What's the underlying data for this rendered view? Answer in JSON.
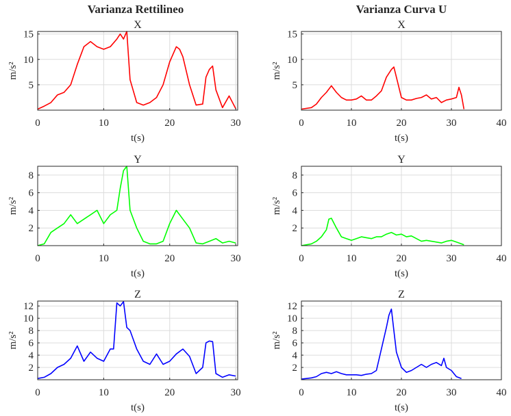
{
  "figure": {
    "column_titles": [
      "Varianza Rettilineo",
      "Varianza Curva U"
    ]
  },
  "colors": {
    "X": "#ff0000",
    "Y": "#00ff00",
    "Z": "#0000ff"
  },
  "chart_data": [
    {
      "type": "line",
      "column": 0,
      "row": 0,
      "title": "X",
      "xlabel": "t(s)",
      "ylabel": "m/s²",
      "xlim": [
        0,
        30.3
      ],
      "ylim": [
        0,
        15.5
      ],
      "xticks": [
        0,
        10,
        20,
        30
      ],
      "yticks": [
        5,
        10,
        15
      ],
      "grid": true,
      "color": "#ff0000",
      "x": [
        0,
        1,
        2,
        3,
        4,
        5,
        6,
        7,
        8,
        9,
        10,
        11,
        12,
        12.5,
        13,
        13.5,
        14,
        15,
        16,
        17,
        18,
        19,
        20,
        21,
        21.5,
        22,
        23,
        24,
        25,
        25.5,
        26,
        26.5,
        27,
        28,
        29,
        30
      ],
      "y": [
        0.2,
        0.8,
        1.5,
        3.0,
        3.5,
        5.0,
        9.0,
        12.5,
        13.5,
        12.5,
        12.0,
        12.5,
        14.0,
        15.0,
        14.0,
        15.5,
        6.0,
        1.5,
        1.0,
        1.5,
        2.5,
        5.0,
        9.5,
        12.5,
        12.0,
        10.5,
        5.0,
        1.0,
        1.2,
        6.5,
        8.0,
        8.7,
        4.0,
        0.5,
        2.8,
        0.3
      ]
    },
    {
      "type": "line",
      "column": 1,
      "row": 0,
      "title": "X",
      "xlabel": "t(s)",
      "ylabel": "m/s²",
      "xlim": [
        0,
        40
      ],
      "ylim": [
        0,
        15.5
      ],
      "xticks": [
        0,
        10,
        20,
        30,
        40
      ],
      "yticks": [
        5,
        10,
        15
      ],
      "grid": true,
      "color": "#ff0000",
      "x": [
        0,
        2,
        3,
        4,
        5,
        6,
        7,
        8,
        9,
        10,
        11,
        12,
        13,
        14,
        15,
        16,
        17,
        18,
        18.5,
        19,
        20,
        21,
        22,
        23,
        24,
        25,
        26,
        27,
        28,
        29,
        30,
        31,
        31.5,
        32,
        32.5
      ],
      "y": [
        0.2,
        0.5,
        1.2,
        2.5,
        3.5,
        4.8,
        3.5,
        2.5,
        2.0,
        2.0,
        2.2,
        2.8,
        2.0,
        2.0,
        2.8,
        3.8,
        6.5,
        8.0,
        8.5,
        6.5,
        2.5,
        2.0,
        2.0,
        2.3,
        2.5,
        3.0,
        2.2,
        2.5,
        1.5,
        2.0,
        2.2,
        2.5,
        4.5,
        3.0,
        0.2
      ]
    },
    {
      "type": "line",
      "column": 0,
      "row": 1,
      "title": "Y",
      "xlabel": "t(s)",
      "ylabel": "m/s²",
      "xlim": [
        0,
        30.3
      ],
      "ylim": [
        0,
        9
      ],
      "xticks": [
        0,
        10,
        20,
        30
      ],
      "yticks": [
        2,
        4,
        6,
        8
      ],
      "grid": true,
      "color": "#00ff00",
      "x": [
        0,
        1,
        2,
        3,
        4,
        5,
        6,
        7,
        8,
        9,
        10,
        11,
        12,
        12.5,
        13,
        13.5,
        14,
        15,
        16,
        17,
        18,
        19,
        20,
        21,
        22,
        23,
        24,
        25,
        26,
        27,
        28,
        29,
        30
      ],
      "y": [
        0,
        0.2,
        1.5,
        2.0,
        2.5,
        3.5,
        2.5,
        3.0,
        3.5,
        4.0,
        2.5,
        3.5,
        4.0,
        6.5,
        8.5,
        9.0,
        4.0,
        2.0,
        0.5,
        0.2,
        0.2,
        0.5,
        2.5,
        4.0,
        3.0,
        2.0,
        0.3,
        0.2,
        0.5,
        0.8,
        0.3,
        0.5,
        0.3
      ]
    },
    {
      "type": "line",
      "column": 1,
      "row": 1,
      "title": "Y",
      "xlabel": "t(s)",
      "ylabel": "m/s²",
      "xlim": [
        0,
        40
      ],
      "ylim": [
        0,
        9
      ],
      "xticks": [
        0,
        10,
        20,
        30,
        40
      ],
      "yticks": [
        2,
        4,
        6,
        8
      ],
      "grid": true,
      "color": "#00ff00",
      "x": [
        0,
        2,
        3,
        4,
        5,
        5.5,
        6,
        7,
        8,
        9,
        10,
        11,
        12,
        13,
        14,
        15,
        16,
        17,
        18,
        19,
        20,
        21,
        22,
        23,
        24,
        25,
        26,
        27,
        28,
        29,
        30,
        31,
        32,
        32.5
      ],
      "y": [
        0,
        0.2,
        0.5,
        1.0,
        1.8,
        3.0,
        3.1,
        2.0,
        1.0,
        0.8,
        0.6,
        0.8,
        1.0,
        0.9,
        0.8,
        1.0,
        1.0,
        1.3,
        1.5,
        1.2,
        1.3,
        1.0,
        1.1,
        0.8,
        0.5,
        0.6,
        0.5,
        0.4,
        0.3,
        0.5,
        0.6,
        0.4,
        0.2,
        0.1
      ]
    },
    {
      "type": "line",
      "column": 0,
      "row": 2,
      "title": "Z",
      "xlabel": "t(s)",
      "ylabel": "m/s²",
      "xlim": [
        0,
        30.3
      ],
      "ylim": [
        0,
        12.8
      ],
      "xticks": [
        0,
        10,
        20,
        30
      ],
      "yticks": [
        2,
        4,
        6,
        8,
        10,
        12
      ],
      "grid": true,
      "color": "#0000ff",
      "x": [
        0,
        1,
        2,
        3,
        4,
        5,
        6,
        7,
        8,
        9,
        10,
        11,
        11.5,
        12,
        12.5,
        13,
        13.5,
        14,
        15,
        16,
        17,
        18,
        19,
        20,
        21,
        22,
        23,
        24,
        25,
        25.5,
        26,
        26.5,
        27,
        28,
        29,
        30
      ],
      "y": [
        0.2,
        0.4,
        1.0,
        2.0,
        2.5,
        3.5,
        5.5,
        3.0,
        4.5,
        3.5,
        3.0,
        5.0,
        5.0,
        12.5,
        12.0,
        12.7,
        8.5,
        8.0,
        5.0,
        3.0,
        2.5,
        4.2,
        2.5,
        3.0,
        4.2,
        5.0,
        3.8,
        1.0,
        2.0,
        6.0,
        6.3,
        6.2,
        1.0,
        0.4,
        0.8,
        0.6
      ]
    },
    {
      "type": "line",
      "column": 1,
      "row": 2,
      "title": "Z",
      "xlabel": "t(s)",
      "ylabel": "m/s²",
      "xlim": [
        0,
        40
      ],
      "ylim": [
        0,
        12.8
      ],
      "xticks": [
        0,
        10,
        20,
        30,
        40
      ],
      "yticks": [
        2,
        4,
        6,
        8,
        10,
        12
      ],
      "grid": true,
      "color": "#0000ff",
      "x": [
        0,
        2,
        3,
        4,
        5,
        6,
        7,
        8,
        9,
        10,
        11,
        12,
        13,
        14,
        15,
        16,
        17,
        17.5,
        18,
        18.5,
        19,
        20,
        21,
        22,
        23,
        24,
        25,
        26,
        27,
        28,
        28.5,
        29,
        30,
        31,
        32
      ],
      "y": [
        0.1,
        0.3,
        0.5,
        1.0,
        1.2,
        1.0,
        1.3,
        1.0,
        0.8,
        0.8,
        0.8,
        0.7,
        0.9,
        1.0,
        1.5,
        5.0,
        8.5,
        10.5,
        11.5,
        8.0,
        4.5,
        2.0,
        1.2,
        1.5,
        2.0,
        2.5,
        2.0,
        2.5,
        2.8,
        2.3,
        3.5,
        2.0,
        1.5,
        0.5,
        0.2
      ]
    }
  ]
}
